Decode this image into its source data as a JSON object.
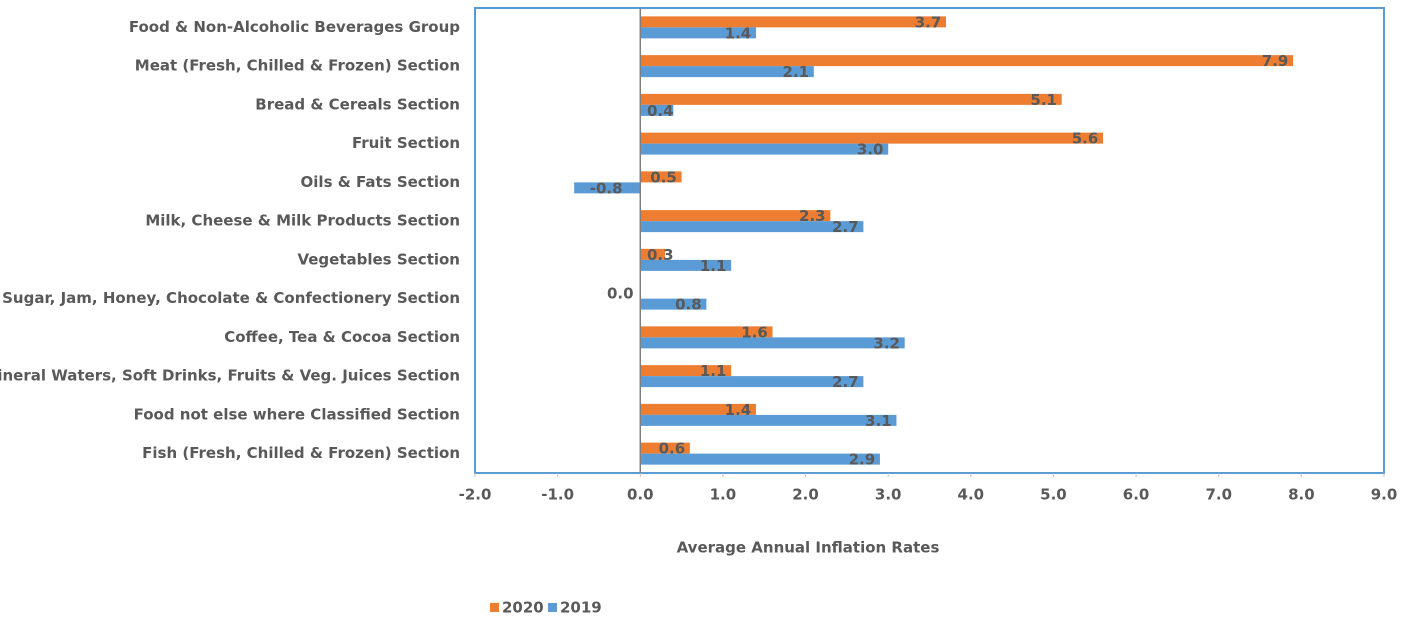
{
  "chart_data": {
    "type": "hbar",
    "categories": [
      "Food & Non-Alcoholic Beverages Group",
      "Meat (Fresh, Chilled & Frozen) Section",
      "Bread & Cereals Section",
      "Fruit Section",
      "Oils & Fats Section",
      "Milk, Cheese & Milk Products Section",
      "Vegetables Section",
      "Sugar, Jam, Honey, Chocolate & Confectionery Section",
      "Coffee, Tea & Cocoa Section",
      "Mineral Waters, Soft Drinks, Fruits & Veg. Juices Section",
      "Food not else where Classified Section",
      "Fish (Fresh, Chilled & Frozen) Section"
    ],
    "series": [
      {
        "name": "2020",
        "color": "#ed7d31",
        "values": [
          3.7,
          7.9,
          5.1,
          5.6,
          0.5,
          2.3,
          0.3,
          0.0,
          1.6,
          1.1,
          1.4,
          0.6
        ],
        "value_labels": [
          "3.7",
          "7.9",
          "5.1",
          "5.6",
          "0.5",
          "2.3",
          "0.3",
          "0.0",
          "1.6",
          "1.1",
          "1.4",
          "0.6"
        ]
      },
      {
        "name": "2019",
        "color": "#5b9bd5",
        "values": [
          1.4,
          2.1,
          0.4,
          3.0,
          -0.8,
          2.7,
          1.1,
          0.8,
          3.2,
          2.7,
          3.1,
          2.9
        ],
        "value_labels": [
          "1.4",
          "2.1",
          "0.4",
          "3.0",
          "-0.8",
          "2.7",
          "1.1",
          "0.8",
          "3.2",
          "2.7",
          "3.1",
          "2.9"
        ]
      }
    ],
    "x_label": "Average Annual Inflation Rates",
    "xlim": [
      -2,
      9
    ],
    "xticks": [
      {
        "value": -2,
        "label": "-2.0"
      },
      {
        "value": -1,
        "label": "-1.0"
      },
      {
        "value": 0,
        "label": "0.0"
      },
      {
        "value": 1,
        "label": "1.0"
      },
      {
        "value": 2,
        "label": "2.0"
      },
      {
        "value": 3,
        "label": "3.0"
      },
      {
        "value": 4,
        "label": "4.0"
      },
      {
        "value": 5,
        "label": "5.0"
      },
      {
        "value": 6,
        "label": "6.0"
      },
      {
        "value": 7,
        "label": "7.0"
      },
      {
        "value": 8,
        "label": "8.0"
      },
      {
        "value": 9,
        "label": "9.0"
      }
    ],
    "legend": "bottom-left"
  }
}
